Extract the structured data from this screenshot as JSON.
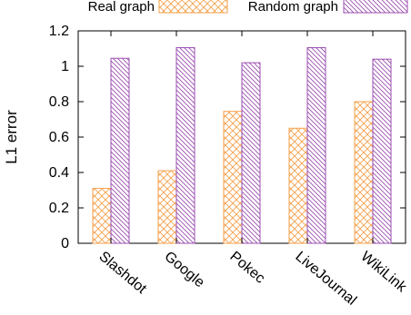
{
  "chart_data": {
    "type": "bar",
    "categories": [
      "Slashdot",
      "Google",
      "Pokec",
      "LiveJournal",
      "WikiLink"
    ],
    "series": [
      {
        "name": "Real graph",
        "values": [
          0.31,
          0.41,
          0.745,
          0.65,
          0.8
        ],
        "color": "#f5a04a",
        "pattern": "crosshatch"
      },
      {
        "name": "Random graph",
        "values": [
          1.045,
          1.105,
          1.02,
          1.105,
          1.04
        ],
        "color": "#9b4fb0",
        "pattern": "diagonal"
      }
    ],
    "ylabel": "L1 error",
    "xlabel": "",
    "ylim": [
      0,
      1.2
    ],
    "yticks": [
      0,
      0.2,
      0.4,
      0.6,
      0.8,
      1,
      1.2
    ],
    "legend_position": "top",
    "grid": false
  }
}
